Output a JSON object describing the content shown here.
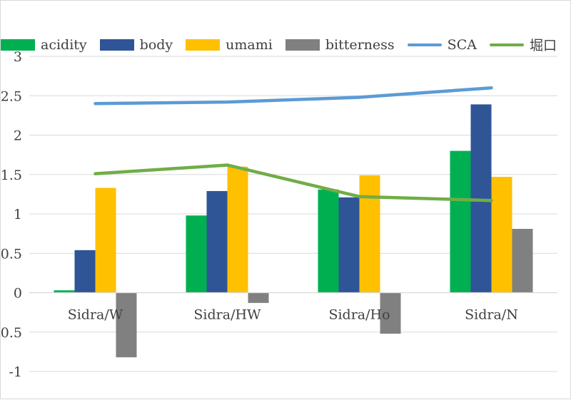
{
  "chart_data": {
    "type": "bar",
    "title": "",
    "xlabel": "",
    "ylabel": "",
    "ylim": [
      -1,
      3
    ],
    "yticks": [
      3,
      2.5,
      2,
      1.5,
      1,
      0.5,
      0,
      -0.5,
      -1
    ],
    "ytick_labels": [
      "3",
      "2.5",
      "2",
      "1.5",
      "1",
      "0.5",
      "0",
      "-0.5",
      "-1"
    ],
    "grid": true,
    "legend_position": "top",
    "categories": [
      "Sidra/W",
      "Sidra/HW",
      "Sidra/Ho",
      "Sidra/N"
    ],
    "series": [
      {
        "name": "acidity",
        "kind": "bar",
        "color": "#00b050",
        "values": [
          0.03,
          0.98,
          1.31,
          1.8
        ]
      },
      {
        "name": "body",
        "kind": "bar",
        "color": "#2f5597",
        "values": [
          0.54,
          1.29,
          1.21,
          2.39
        ]
      },
      {
        "name": "umami",
        "kind": "bar",
        "color": "#ffc000",
        "values": [
          1.33,
          1.6,
          1.49,
          1.47
        ]
      },
      {
        "name": "bitterness",
        "kind": "bar",
        "color": "#808080",
        "values": [
          -0.82,
          -0.13,
          -0.52,
          0.81
        ]
      },
      {
        "name": "SCA",
        "kind": "line",
        "color": "#5b9bd5",
        "values": [
          2.4,
          2.42,
          2.48,
          2.6
        ]
      },
      {
        "name": "堀口",
        "kind": "line",
        "color": "#70ad47",
        "values": [
          1.51,
          1.62,
          1.22,
          1.17
        ]
      }
    ]
  }
}
